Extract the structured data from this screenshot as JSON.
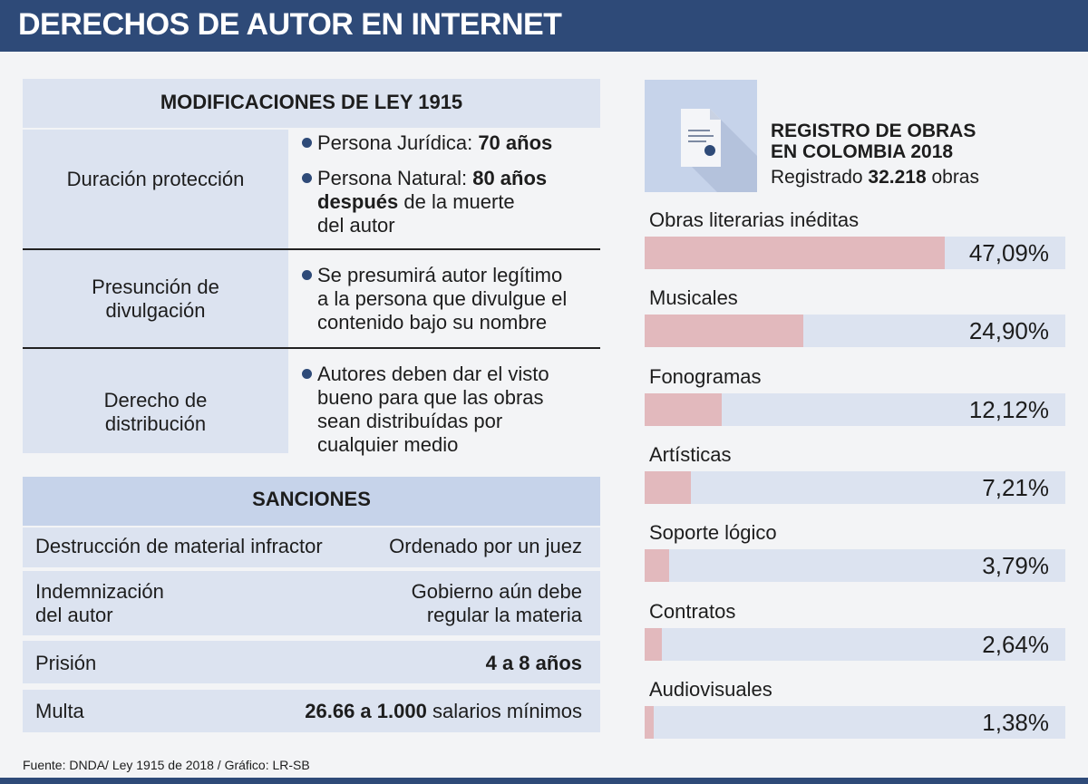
{
  "title": "DERECHOS DE AUTOR EN INTERNET",
  "modificaciones": {
    "header": "MODIFICACIONES DE LEY 1915",
    "rows": [
      {
        "label_lines": [
          "Duración protección"
        ],
        "bullets": [
          {
            "lines": [
              "Persona Jurídica: 70 años"
            ]
          },
          {
            "lines": [
              "Persona Natural: 80 años",
              "después de la muerte",
              "del autor"
            ]
          }
        ]
      },
      {
        "label_lines": [
          "Presunción de",
          "divulgación"
        ],
        "bullets": [
          {
            "lines": [
              "Se presumirá autor legítimo",
              "a la persona que divulgue el",
              "contenido bajo su nombre"
            ]
          }
        ]
      },
      {
        "label_lines": [
          "Derecho de",
          "distribución"
        ],
        "bullets": [
          {
            "lines": [
              "Autores deben dar el visto",
              "bueno para que las obras",
              "sean distribuídas por",
              "cualquier medio"
            ]
          }
        ]
      }
    ]
  },
  "sanciones": {
    "header": "SANCIONES",
    "rows": [
      {
        "left": [
          "Destrucción de material infractor"
        ],
        "right": [
          "Ordenado por un juez"
        ]
      },
      {
        "left": [
          "Indemnización",
          "del autor"
        ],
        "right": [
          "Gobierno aún debe",
          "regular la materia"
        ]
      },
      {
        "left": [
          "Prisión"
        ],
        "right": [
          "4 a 8 años"
        ]
      },
      {
        "left": [
          "Multa"
        ],
        "right": [
          "26.66 a 1.000 salarios mínimos"
        ]
      }
    ]
  },
  "source": "Fuente: DNDA/ Ley 1915 de 2018  / Gráfico: LR-SB",
  "registro": {
    "title_lines": [
      "REGISTRO DE OBRAS",
      "EN COLOMBIA 2018"
    ],
    "subtitle": "Registrado 32.218 obras",
    "icon": "document-certificate-icon"
  },
  "colors": {
    "brand": "#2e4a78",
    "bar_fill": "#e2b9bd",
    "bar_track": "#dce3f0",
    "header_light": "#dce3f0",
    "header_medium": "#c6d3ea"
  },
  "chart_data": {
    "type": "bar",
    "orientation": "horizontal",
    "categories": [
      "Obras literarias inéditas",
      "Musicales",
      "Fonogramas",
      "Artísticas",
      "Soporte lógico",
      "Contratos",
      "Audiovisuales"
    ],
    "values": [
      47.09,
      24.9,
      12.12,
      7.21,
      3.79,
      2.64,
      1.38
    ],
    "value_labels": [
      "47,09%",
      "24,90%",
      "12,12%",
      "7,21%",
      "3,79%",
      "2,64%",
      "1,38%"
    ],
    "unit": "%",
    "xlim": [
      0,
      66
    ]
  }
}
